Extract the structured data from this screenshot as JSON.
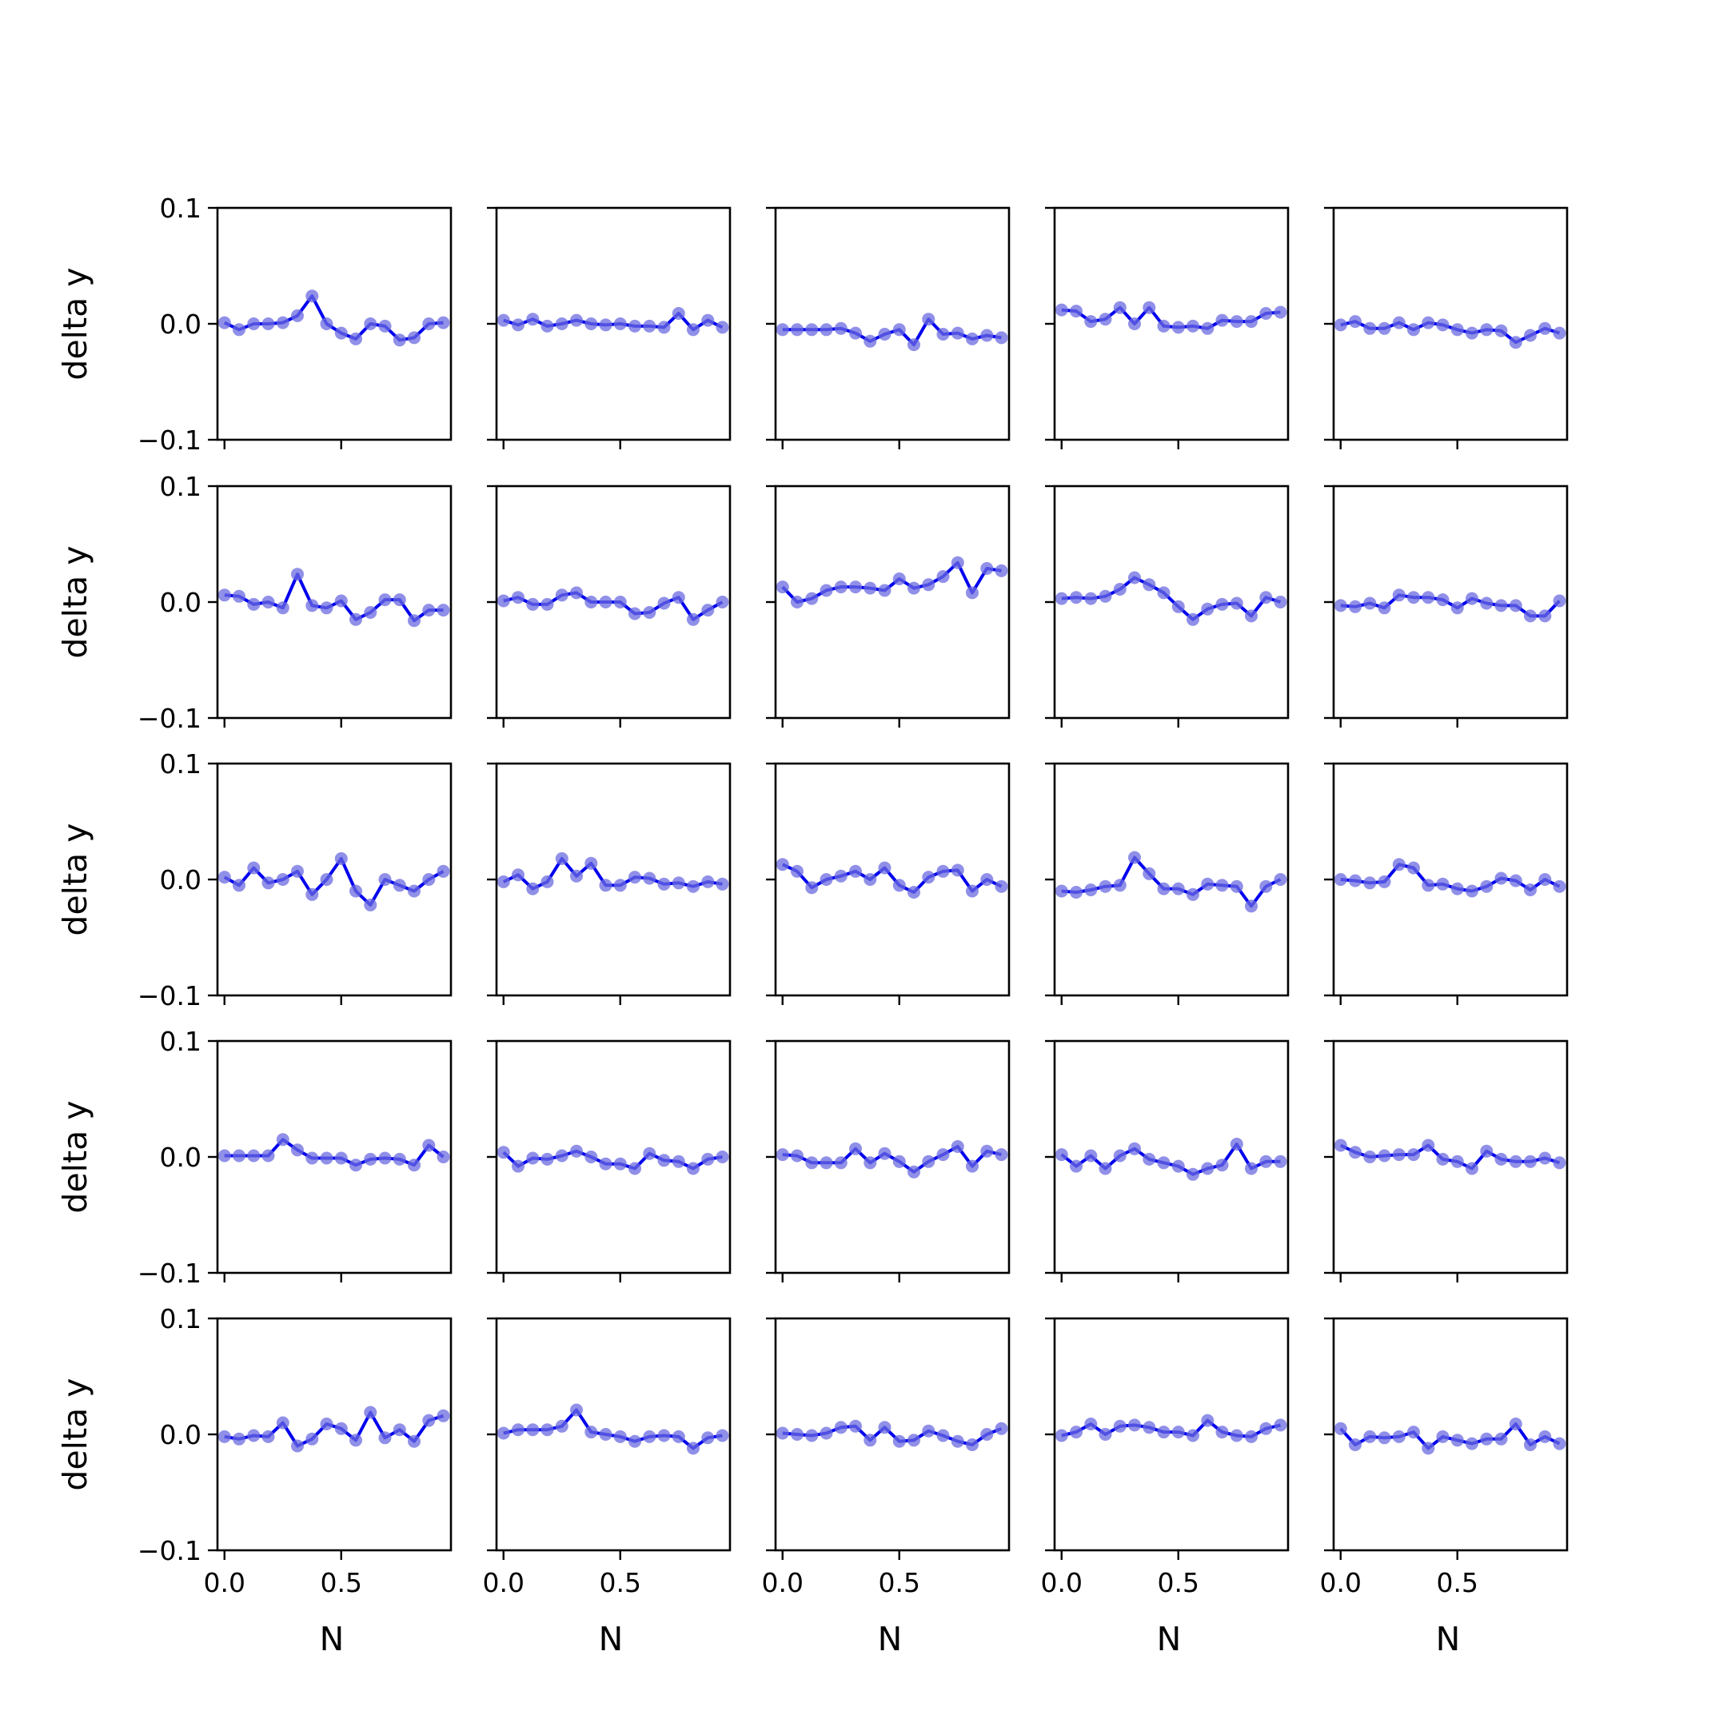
{
  "figure": {
    "nrows": 5,
    "ncols": 5
  },
  "axis_text": {
    "xlabel": "N",
    "ylabel": "delta y",
    "xticks": [
      0.0,
      0.5
    ],
    "xtick_labels": [
      "0.0",
      "0.5"
    ],
    "yticks": [
      0.1,
      0.0,
      -0.1
    ],
    "ytick_labels": [
      "0.1",
      "0.0",
      "−0.1"
    ]
  },
  "chart_data": {
    "type": "line",
    "markers": true,
    "grid": false,
    "line_color": "#0000ee",
    "marker_color": "#6b6be0",
    "x": [
      0.0,
      0.0625,
      0.125,
      0.1875,
      0.25,
      0.3125,
      0.375,
      0.4375,
      0.5,
      0.5625,
      0.625,
      0.6875,
      0.75,
      0.8125,
      0.875,
      0.9375
    ],
    "xlim": [
      -0.03,
      0.97
    ],
    "ylim": [
      -0.1,
      0.1
    ],
    "panels": [
      {
        "values": [
          0.001,
          -0.005,
          0.0,
          0.0,
          0.001,
          0.007,
          0.024,
          0.0,
          -0.008,
          -0.013,
          0.0,
          -0.002,
          -0.014,
          -0.012,
          0.0,
          0.001
        ]
      },
      {
        "values": [
          0.003,
          -0.001,
          0.004,
          -0.002,
          0.0,
          0.003,
          0.0,
          -0.001,
          0.0,
          -0.002,
          -0.002,
          -0.003,
          0.009,
          -0.005,
          0.003,
          -0.003
        ]
      },
      {
        "values": [
          -0.005,
          -0.005,
          -0.005,
          -0.005,
          -0.004,
          -0.008,
          -0.015,
          -0.009,
          -0.005,
          -0.018,
          0.004,
          -0.009,
          -0.008,
          -0.013,
          -0.01,
          -0.012
        ]
      },
      {
        "values": [
          0.012,
          0.011,
          0.002,
          0.004,
          0.014,
          0.0,
          0.014,
          -0.002,
          -0.003,
          -0.002,
          -0.004,
          0.003,
          0.002,
          0.002,
          0.009,
          0.01
        ]
      },
      {
        "values": [
          -0.001,
          0.002,
          -0.004,
          -0.004,
          0.001,
          -0.005,
          0.001,
          -0.001,
          -0.005,
          -0.008,
          -0.005,
          -0.006,
          -0.016,
          -0.01,
          -0.004,
          -0.008
        ]
      },
      {
        "values": [
          0.006,
          0.005,
          -0.002,
          0.0,
          -0.005,
          0.024,
          -0.003,
          -0.005,
          0.001,
          -0.015,
          -0.009,
          0.002,
          0.002,
          -0.016,
          -0.007,
          -0.007
        ]
      },
      {
        "values": [
          0.001,
          0.004,
          -0.002,
          -0.002,
          0.006,
          0.008,
          0.0,
          0.0,
          0.0,
          -0.01,
          -0.009,
          -0.001,
          0.004,
          -0.015,
          -0.007,
          0.0
        ]
      },
      {
        "values": [
          0.013,
          0.0,
          0.003,
          0.01,
          0.013,
          0.013,
          0.012,
          0.01,
          0.02,
          0.012,
          0.015,
          0.022,
          0.034,
          0.008,
          0.029,
          0.027
        ]
      },
      {
        "values": [
          0.003,
          0.004,
          0.003,
          0.005,
          0.011,
          0.021,
          0.015,
          0.008,
          -0.004,
          -0.015,
          -0.006,
          -0.002,
          -0.001,
          -0.012,
          0.004,
          0.0
        ]
      },
      {
        "values": [
          -0.003,
          -0.004,
          -0.001,
          -0.005,
          0.006,
          0.004,
          0.004,
          0.002,
          -0.005,
          0.003,
          -0.001,
          -0.003,
          -0.003,
          -0.012,
          -0.012,
          0.001
        ]
      },
      {
        "values": [
          0.002,
          -0.005,
          0.01,
          -0.003,
          0.0,
          0.007,
          -0.013,
          0.0,
          0.018,
          -0.01,
          -0.022,
          0.0,
          -0.005,
          -0.01,
          0.0,
          0.007
        ]
      },
      {
        "values": [
          -0.002,
          0.004,
          -0.008,
          -0.002,
          0.018,
          0.003,
          0.014,
          -0.005,
          -0.005,
          0.002,
          0.001,
          -0.004,
          -0.003,
          -0.006,
          -0.002,
          -0.004
        ]
      },
      {
        "values": [
          0.013,
          0.007,
          -0.007,
          0.0,
          0.003,
          0.007,
          0.0,
          0.01,
          -0.005,
          -0.011,
          0.002,
          0.007,
          0.008,
          -0.01,
          0.0,
          -0.006
        ]
      },
      {
        "values": [
          -0.01,
          -0.011,
          -0.009,
          -0.006,
          -0.005,
          0.019,
          0.005,
          -0.008,
          -0.008,
          -0.013,
          -0.004,
          -0.005,
          -0.006,
          -0.023,
          -0.006,
          0.0
        ]
      },
      {
        "values": [
          0.0,
          -0.001,
          -0.003,
          -0.002,
          0.013,
          0.01,
          -0.005,
          -0.004,
          -0.008,
          -0.01,
          -0.006,
          0.001,
          -0.001,
          -0.009,
          0.0,
          -0.006
        ]
      },
      {
        "values": [
          0.001,
          0.001,
          0.001,
          0.001,
          0.015,
          0.006,
          -0.001,
          -0.001,
          -0.001,
          -0.007,
          -0.002,
          -0.001,
          -0.002,
          -0.007,
          0.01,
          0.0
        ]
      },
      {
        "values": [
          0.004,
          -0.008,
          -0.001,
          -0.002,
          0.001,
          0.005,
          0.0,
          -0.006,
          -0.006,
          -0.01,
          0.003,
          -0.003,
          -0.004,
          -0.01,
          -0.002,
          0.0
        ]
      },
      {
        "values": [
          0.002,
          0.001,
          -0.005,
          -0.005,
          -0.005,
          0.007,
          -0.005,
          0.003,
          -0.004,
          -0.013,
          -0.004,
          0.002,
          0.009,
          -0.008,
          0.005,
          0.002
        ]
      },
      {
        "values": [
          0.002,
          -0.008,
          0.001,
          -0.01,
          0.001,
          0.007,
          -0.002,
          -0.005,
          -0.008,
          -0.015,
          -0.01,
          -0.007,
          0.011,
          -0.01,
          -0.004,
          -0.004
        ]
      },
      {
        "values": [
          0.01,
          0.004,
          0.0,
          0.001,
          0.002,
          0.002,
          0.01,
          -0.002,
          -0.004,
          -0.01,
          0.005,
          -0.002,
          -0.004,
          -0.004,
          -0.001,
          -0.005
        ]
      },
      {
        "values": [
          -0.002,
          -0.004,
          -0.001,
          -0.002,
          0.01,
          -0.01,
          -0.004,
          0.009,
          0.005,
          -0.005,
          0.019,
          -0.003,
          0.004,
          -0.006,
          0.012,
          0.016
        ]
      },
      {
        "values": [
          0.001,
          0.004,
          0.004,
          0.004,
          0.007,
          0.021,
          0.002,
          0.0,
          -0.002,
          -0.006,
          -0.002,
          -0.001,
          -0.002,
          -0.012,
          -0.003,
          -0.001
        ]
      },
      {
        "values": [
          0.001,
          0.0,
          -0.001,
          0.001,
          0.006,
          0.007,
          -0.005,
          0.006,
          -0.006,
          -0.005,
          0.003,
          -0.001,
          -0.006,
          -0.009,
          0.0,
          0.005
        ]
      },
      {
        "values": [
          -0.001,
          0.002,
          0.009,
          0.0,
          0.007,
          0.008,
          0.006,
          0.002,
          0.002,
          -0.001,
          0.012,
          0.002,
          -0.001,
          -0.002,
          0.005,
          0.008
        ]
      },
      {
        "values": [
          0.005,
          -0.009,
          -0.002,
          -0.003,
          -0.002,
          0.002,
          -0.012,
          -0.002,
          -0.005,
          -0.008,
          -0.004,
          -0.004,
          0.009,
          -0.009,
          -0.002,
          -0.008
        ]
      }
    ]
  }
}
